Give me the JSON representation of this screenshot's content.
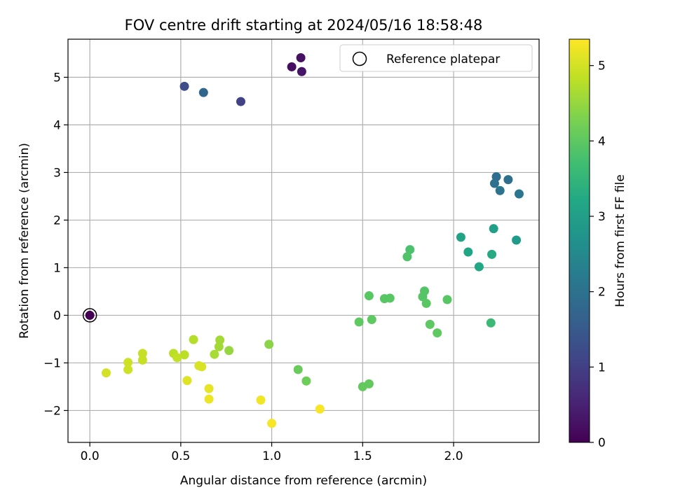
{
  "chart_data": {
    "type": "scatter",
    "title": "FOV centre drift starting at 2024/05/16 18:58:48",
    "xlabel": "Angular distance from reference (arcmin)",
    "ylabel": "Rotation from reference (arcmin)",
    "xlim": [
      -0.12,
      2.47
    ],
    "ylim": [
      -2.67,
      5.8
    ],
    "xticks": [
      0.0,
      0.5,
      1.0,
      1.5,
      2.0
    ],
    "xtick_labels": [
      "0.0",
      "0.5",
      "1.0",
      "1.5",
      "2.0"
    ],
    "yticks": [
      -2,
      -1,
      0,
      1,
      2,
      3,
      4,
      5
    ],
    "ytick_labels": [
      "−2",
      "−1",
      "0",
      "1",
      "2",
      "3",
      "4",
      "5"
    ],
    "grid": true,
    "legend": {
      "placement": "top-right",
      "entries": [
        "Reference platepar"
      ]
    },
    "reference_point": {
      "x": 0.0,
      "y": 0.0,
      "label": "Reference platepar"
    },
    "colorbar": {
      "label": "Hours from first FF file",
      "colormap": "viridis",
      "range": [
        0,
        5.35
      ],
      "ticks": [
        0,
        1,
        2,
        3,
        4,
        5
      ],
      "tick_labels": [
        "0",
        "1",
        "2",
        "3",
        "4",
        "5"
      ]
    },
    "points": [
      {
        "x": 0.0,
        "y": 0.0,
        "c": 0.0
      },
      {
        "x": 1.11,
        "y": 5.22,
        "c": 0.2
      },
      {
        "x": 1.16,
        "y": 5.41,
        "c": 0.25
      },
      {
        "x": 1.165,
        "y": 5.12,
        "c": 0.3
      },
      {
        "x": 0.83,
        "y": 4.49,
        "c": 1.05
      },
      {
        "x": 0.52,
        "y": 4.81,
        "c": 1.25
      },
      {
        "x": 0.625,
        "y": 4.68,
        "c": 1.75
      },
      {
        "x": 2.235,
        "y": 2.91,
        "c": 1.9
      },
      {
        "x": 2.3,
        "y": 2.85,
        "c": 1.95
      },
      {
        "x": 2.225,
        "y": 2.77,
        "c": 2.0
      },
      {
        "x": 2.255,
        "y": 2.62,
        "c": 2.05
      },
      {
        "x": 2.36,
        "y": 2.55,
        "c": 2.1
      },
      {
        "x": 2.345,
        "y": 1.58,
        "c": 2.9
      },
      {
        "x": 2.22,
        "y": 1.82,
        "c": 3.0
      },
      {
        "x": 2.04,
        "y": 1.64,
        "c": 3.1
      },
      {
        "x": 2.08,
        "y": 1.33,
        "c": 3.15
      },
      {
        "x": 2.14,
        "y": 1.02,
        "c": 3.2
      },
      {
        "x": 2.21,
        "y": 1.28,
        "c": 3.25
      },
      {
        "x": 2.205,
        "y": -0.16,
        "c": 3.6
      },
      {
        "x": 1.76,
        "y": 1.38,
        "c": 3.8
      },
      {
        "x": 1.745,
        "y": 1.23,
        "c": 3.85
      },
      {
        "x": 1.84,
        "y": 0.51,
        "c": 3.9
      },
      {
        "x": 1.83,
        "y": 0.39,
        "c": 3.9
      },
      {
        "x": 1.85,
        "y": 0.25,
        "c": 3.95
      },
      {
        "x": 1.965,
        "y": 0.33,
        "c": 3.95
      },
      {
        "x": 1.62,
        "y": 0.35,
        "c": 3.95
      },
      {
        "x": 1.65,
        "y": 0.36,
        "c": 3.95
      },
      {
        "x": 1.535,
        "y": 0.41,
        "c": 3.95
      },
      {
        "x": 1.87,
        "y": -0.19,
        "c": 4.0
      },
      {
        "x": 1.91,
        "y": -0.37,
        "c": 4.0
      },
      {
        "x": 1.48,
        "y": -0.14,
        "c": 4.0
      },
      {
        "x": 1.55,
        "y": -0.09,
        "c": 4.0
      },
      {
        "x": 1.535,
        "y": -1.44,
        "c": 4.05
      },
      {
        "x": 1.5,
        "y": -1.5,
        "c": 4.05
      },
      {
        "x": 1.145,
        "y": -1.14,
        "c": 4.1
      },
      {
        "x": 1.19,
        "y": -1.38,
        "c": 4.15
      },
      {
        "x": 0.985,
        "y": -0.61,
        "c": 4.4
      },
      {
        "x": 0.765,
        "y": -0.74,
        "c": 4.5
      },
      {
        "x": 0.715,
        "y": -0.52,
        "c": 4.6
      },
      {
        "x": 0.71,
        "y": -0.66,
        "c": 4.6
      },
      {
        "x": 0.685,
        "y": -0.82,
        "c": 4.65
      },
      {
        "x": 0.57,
        "y": -0.51,
        "c": 4.75
      },
      {
        "x": 0.52,
        "y": -0.83,
        "c": 4.8
      },
      {
        "x": 0.46,
        "y": -0.8,
        "c": 4.8
      },
      {
        "x": 0.48,
        "y": -0.89,
        "c": 4.85
      },
      {
        "x": 0.29,
        "y": -0.8,
        "c": 4.9
      },
      {
        "x": 0.29,
        "y": -0.94,
        "c": 4.9
      },
      {
        "x": 0.21,
        "y": -0.99,
        "c": 4.95
      },
      {
        "x": 0.21,
        "y": -1.14,
        "c": 4.95
      },
      {
        "x": 0.09,
        "y": -1.21,
        "c": 5.0
      },
      {
        "x": 0.6,
        "y": -1.06,
        "c": 5.05
      },
      {
        "x": 0.615,
        "y": -1.08,
        "c": 5.05
      },
      {
        "x": 0.535,
        "y": -1.37,
        "c": 5.1
      },
      {
        "x": 0.655,
        "y": -1.54,
        "c": 5.15
      },
      {
        "x": 0.655,
        "y": -1.76,
        "c": 5.2
      },
      {
        "x": 0.94,
        "y": -1.78,
        "c": 5.25
      },
      {
        "x": 1.0,
        "y": -2.27,
        "c": 5.3
      },
      {
        "x": 1.265,
        "y": -1.97,
        "c": 5.3
      }
    ]
  }
}
